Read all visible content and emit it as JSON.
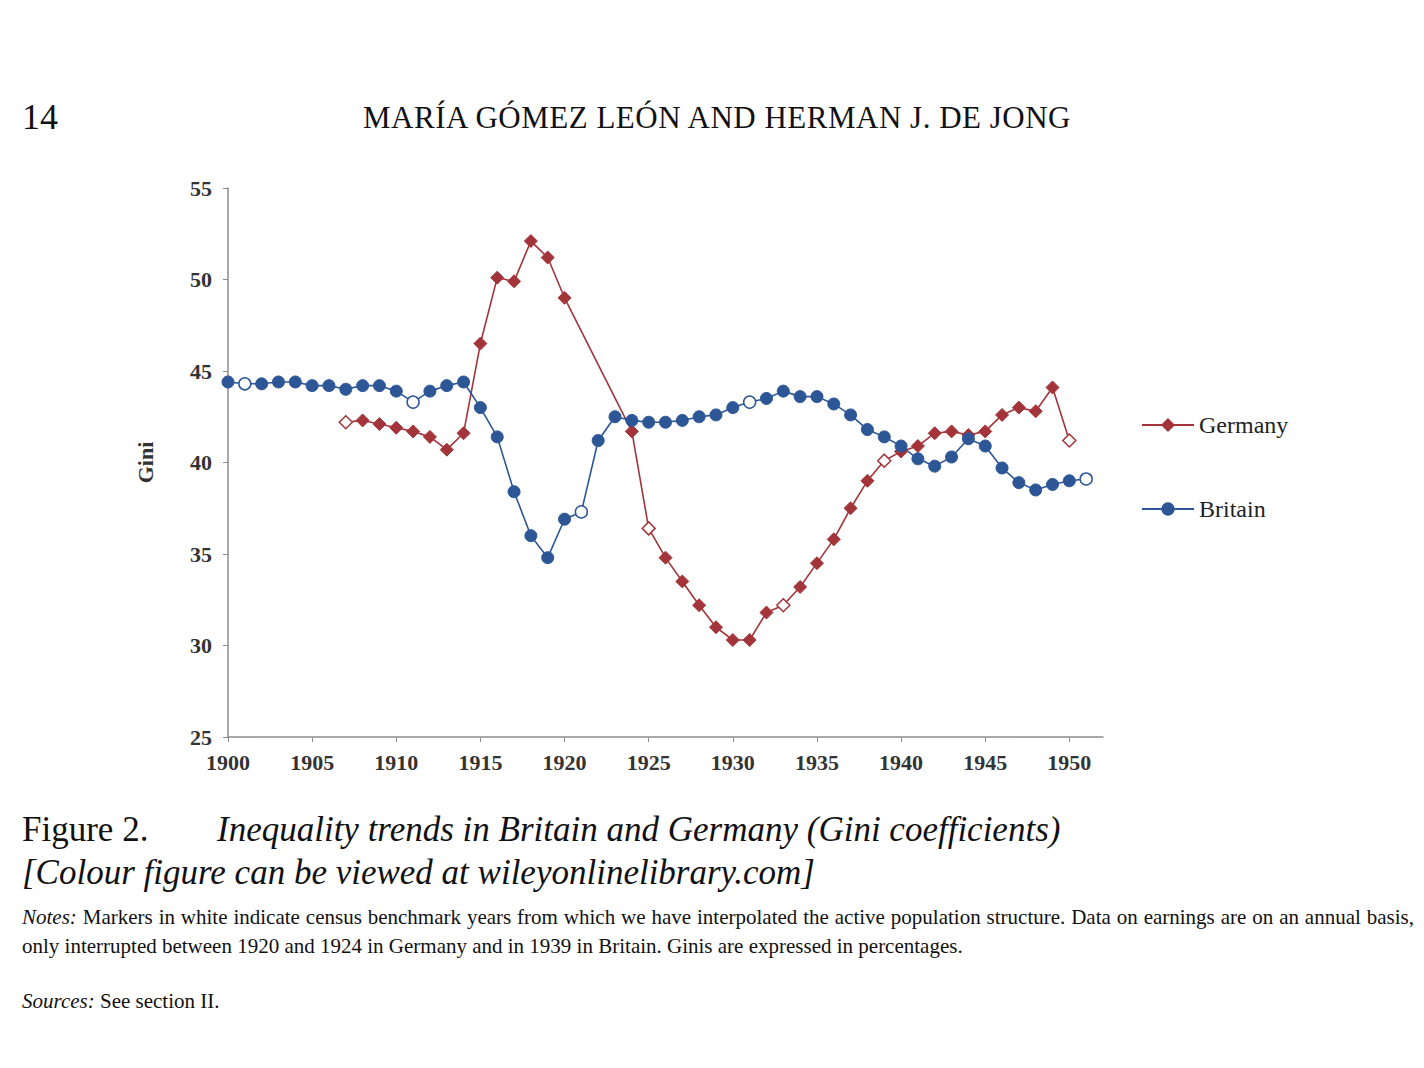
{
  "header": {
    "page": "14",
    "authors": "MARÍA GÓMEZ LEÓN AND HERMAN J. DE JONG"
  },
  "chart_data": {
    "type": "line",
    "ylabel": "Gini",
    "xlim": [
      1900,
      1952
    ],
    "xticks": [
      1900,
      1905,
      1910,
      1915,
      1920,
      1925,
      1930,
      1935,
      1940,
      1945,
      1950
    ],
    "ylim": [
      25,
      55
    ],
    "yticks": [
      25,
      30,
      35,
      40,
      45,
      50,
      55
    ],
    "grid": false,
    "legend": "right",
    "series": [
      {
        "name": "Germany",
        "color": "#a3353a",
        "marker": "diamond",
        "x": [
          1907,
          1908,
          1909,
          1910,
          1911,
          1912,
          1913,
          1914,
          1915,
          1916,
          1917,
          1918,
          1919,
          1920,
          1924,
          1925,
          1926,
          1927,
          1928,
          1929,
          1930,
          1931,
          1932,
          1933,
          1934,
          1935,
          1936,
          1937,
          1938,
          1939,
          1940,
          1941,
          1942,
          1943,
          1944,
          1945,
          1946,
          1947,
          1948,
          1949,
          1950
        ],
        "values": [
          42.2,
          42.3,
          42.1,
          41.9,
          41.7,
          41.4,
          40.7,
          41.6,
          46.5,
          50.1,
          49.9,
          52.1,
          51.2,
          49.0,
          41.7,
          36.4,
          34.8,
          33.5,
          32.2,
          31.0,
          30.3,
          30.3,
          31.8,
          32.2,
          33.2,
          34.5,
          35.8,
          37.5,
          39.0,
          40.1,
          40.6,
          40.9,
          41.6,
          41.7,
          41.5,
          41.7,
          42.6,
          43.0,
          42.8,
          44.1,
          41.2
        ],
        "benchmark_x": [
          1907,
          1925,
          1933,
          1939,
          1950
        ]
      },
      {
        "name": "Britain",
        "color": "#2d5696",
        "marker": "circle",
        "x": [
          1900,
          1901,
          1902,
          1903,
          1904,
          1905,
          1906,
          1907,
          1908,
          1909,
          1910,
          1911,
          1912,
          1913,
          1914,
          1915,
          1916,
          1917,
          1918,
          1919,
          1920,
          1921,
          1922,
          1923,
          1924,
          1925,
          1926,
          1927,
          1928,
          1929,
          1930,
          1931,
          1932,
          1933,
          1934,
          1935,
          1936,
          1937,
          1938,
          1939,
          1940,
          1941,
          1942,
          1943,
          1944,
          1945,
          1946,
          1947,
          1948,
          1949,
          1950,
          1951
        ],
        "values": [
          44.4,
          44.3,
          44.3,
          44.4,
          44.4,
          44.2,
          44.2,
          44.0,
          44.2,
          44.2,
          43.9,
          43.3,
          43.9,
          44.2,
          44.4,
          43.0,
          41.4,
          38.4,
          36.0,
          34.8,
          36.9,
          37.3,
          41.2,
          42.5,
          42.3,
          42.2,
          42.2,
          42.3,
          42.5,
          42.6,
          43.0,
          43.3,
          43.5,
          43.9,
          43.6,
          43.6,
          43.2,
          42.6,
          41.8,
          41.4,
          40.9,
          40.2,
          39.8,
          40.3,
          41.3,
          40.9,
          39.7,
          38.9,
          38.5,
          38.8,
          39.0,
          39.1
        ],
        "benchmark_x": [
          1901,
          1911,
          1921,
          1931,
          1951
        ]
      }
    ]
  },
  "caption": {
    "label": "Figure 2.",
    "title": "Inequality trends in Britain and Germany (Gini coefficients)",
    "subtitle": "[Colour figure can be viewed at wileyonlinelibrary.com]"
  },
  "notes": {
    "label": "Notes:",
    "text": "Markers in white indicate census benchmark years from which we have interpolated the active population structure. Data on earnings are on an annual basis, only interrupted between 1920 and 1924 in Germany and in 1939 in Britain. Ginis are expressed in percentages."
  },
  "sources": {
    "label": "Sources:",
    "text": "See section II."
  }
}
